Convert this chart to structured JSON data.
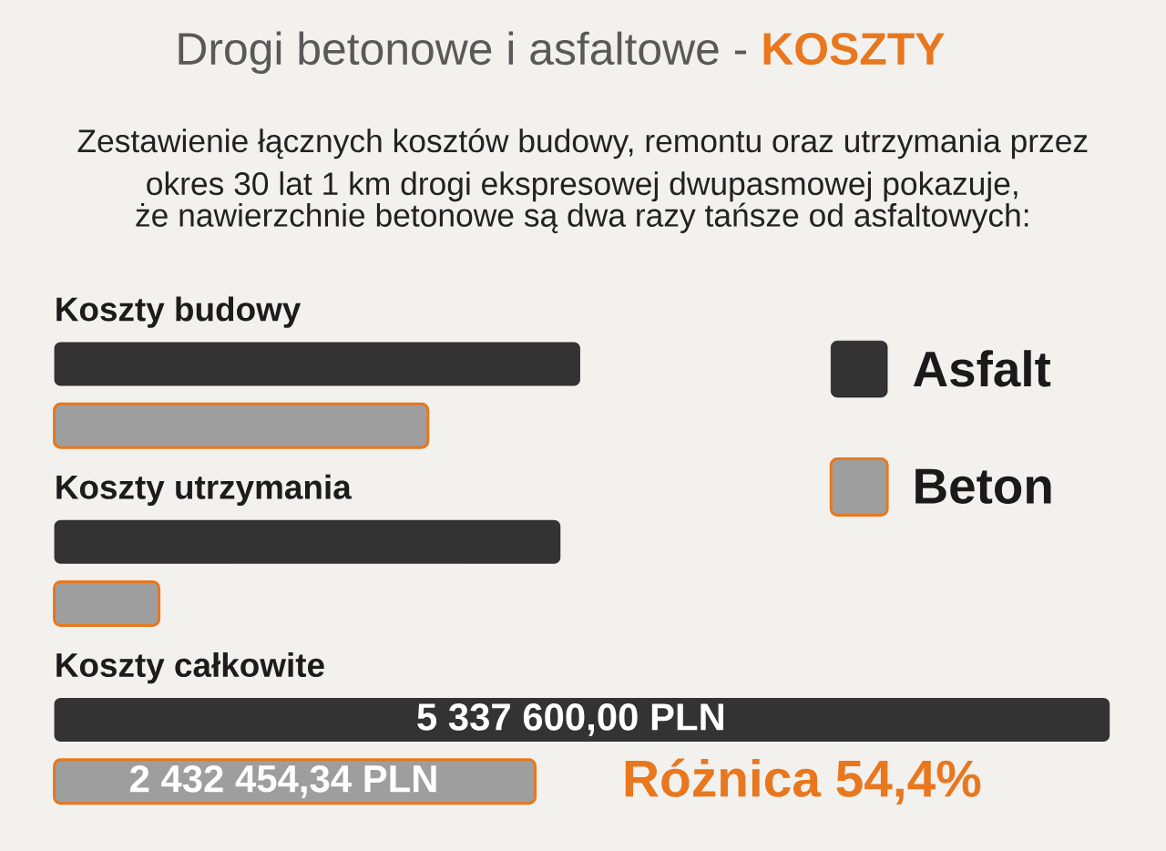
{
  "chart_data": {
    "type": "bar",
    "orientation": "horizontal",
    "title": "Drogi betonowe i asfaltowe - **KOSZTY**",
    "subtitle": "Zestawienie łącznych kosztów budowy, remontu oraz utrzymania przez\nokres 30 lat 1 km drogi ekspresowej dwupasmowej pokazuje,\nże nawierzchnie betonowe są dwa razy tańsze od asfaltowych:",
    "categories": [
      "Koszty budowy",
      "Koszty utrzymania",
      "Koszty całkowite"
    ],
    "series": [
      {
        "name": "Asfalt",
        "color": "#333333",
        "values": [
          2660000,
          2560000,
          5337600
        ],
        "value_labels": [
          null,
          null,
          "5 337 600,00 PLN"
        ]
      },
      {
        "name": "Beton",
        "color": "#9e9e9e",
        "values": [
          1890000,
          530000,
          2432454.34
        ],
        "value_labels": [
          null,
          null,
          "2 432 454,34 PLN"
        ]
      }
    ],
    "legend": "top right",
    "annotations": [
      "Różnica 54,4%"
    ]
  }
}
